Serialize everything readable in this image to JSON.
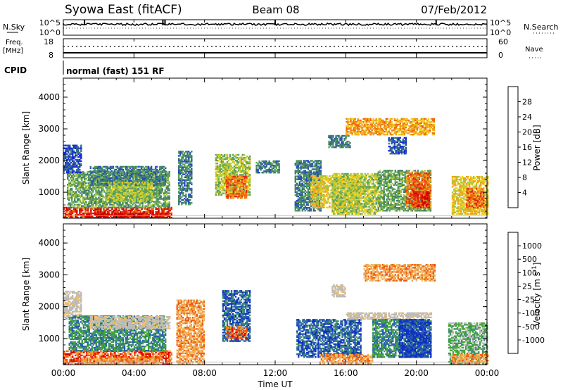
{
  "header": {
    "station": "Syowa East (fitACF)",
    "beam": "Beam 08",
    "date": "07/Feb/2012"
  },
  "top_panels": {
    "nsky_label": "N.Sky",
    "nsky_ticks": [
      "10^5",
      "10^0"
    ],
    "nsearch_label": "N.Search",
    "nsearch_ticks": [
      "10^5",
      "10^0"
    ],
    "freq_label": "Freq.",
    "freq_unit": "[MHz]",
    "freq_ticks": [
      "18",
      "8"
    ],
    "nave_label": "Nave",
    "nave_ticks": [
      "60",
      "0"
    ],
    "cpid_label": "CPID",
    "cpid_text": "normal (fast) 151 RF"
  },
  "chart_data": [
    {
      "type": "heatmap",
      "name": "power",
      "ylabel": "Slant Range [km]",
      "ylim": [
        180,
        4600
      ],
      "yticks": [
        1000,
        2000,
        3000,
        4000
      ],
      "xlim": [
        0,
        24
      ],
      "colorbar_label": "Power [dB]",
      "colorbar_ticks": [
        "4",
        "8",
        "12",
        "16",
        "20",
        "24",
        "28"
      ],
      "colorbar_colors": [
        "#1428e0",
        "#2a4fb8",
        "#3f7f6f",
        "#5aa05a",
        "#a8c640",
        "#f0d020",
        "#f0a020",
        "#f06a10",
        "#e02810",
        "#d00000"
      ],
      "patches": [
        {
          "t0": 0.0,
          "t1": 6.1,
          "r0": 180,
          "r1": 520,
          "level": 8
        },
        {
          "t0": 1.2,
          "t1": 6.0,
          "r0": 180,
          "r1": 360,
          "level": 9
        },
        {
          "t0": 0.2,
          "t1": 6.0,
          "r0": 500,
          "r1": 1650,
          "level": 3
        },
        {
          "t0": 0.0,
          "t1": 1.0,
          "r0": 1600,
          "r1": 2500,
          "level": 1
        },
        {
          "t0": 1.5,
          "t1": 5.8,
          "r0": 1200,
          "r1": 1800,
          "level": 2
        },
        {
          "t0": 2.5,
          "t1": 5.0,
          "r0": 700,
          "r1": 1300,
          "level": 4
        },
        {
          "t0": 6.5,
          "t1": 7.3,
          "r0": 600,
          "r1": 2300,
          "level": 2
        },
        {
          "t0": 8.6,
          "t1": 10.6,
          "r0": 900,
          "r1": 2200,
          "level": 4
        },
        {
          "t0": 9.2,
          "t1": 10.4,
          "r0": 800,
          "r1": 1500,
          "level": 7
        },
        {
          "t0": 10.9,
          "t1": 12.2,
          "r0": 1600,
          "r1": 2000,
          "level": 2
        },
        {
          "t0": 13.1,
          "t1": 14.6,
          "r0": 400,
          "r1": 2000,
          "level": 2
        },
        {
          "t0": 14.0,
          "t1": 16.8,
          "r0": 500,
          "r1": 1500,
          "level": 5
        },
        {
          "t0": 15.2,
          "t1": 17.8,
          "r0": 300,
          "r1": 1600,
          "level": 4
        },
        {
          "t0": 17.8,
          "t1": 20.8,
          "r0": 400,
          "r1": 1700,
          "level": 3
        },
        {
          "t0": 19.4,
          "t1": 20.8,
          "r0": 500,
          "r1": 1600,
          "level": 7
        },
        {
          "t0": 19.8,
          "t1": 20.7,
          "r0": 500,
          "r1": 1000,
          "level": 8
        },
        {
          "t0": 22.0,
          "t1": 24.0,
          "r0": 300,
          "r1": 1500,
          "level": 5
        },
        {
          "t0": 22.8,
          "t1": 23.8,
          "r0": 500,
          "r1": 1100,
          "level": 7
        },
        {
          "t0": 18.4,
          "t1": 19.4,
          "r0": 2200,
          "r1": 2700,
          "level": 1
        },
        {
          "t0": 15.0,
          "t1": 16.2,
          "r0": 2400,
          "r1": 2800,
          "level": 2
        },
        {
          "t0": 16.0,
          "t1": 21.0,
          "r0": 2800,
          "r1": 3300,
          "level": 6
        }
      ]
    },
    {
      "type": "heatmap",
      "name": "velocity",
      "ylabel": "Slant Range [km]",
      "xlabel": "Time UT",
      "ylim": [
        180,
        4600
      ],
      "yticks": [
        1000,
        2000,
        3000,
        4000
      ],
      "xlim": [
        0,
        24
      ],
      "xticks": [
        "00:00",
        "04:00",
        "08:00",
        "12:00",
        "16:00",
        "20:00",
        "00:00"
      ],
      "colorbar_label": "Velocity [m s^-1]",
      "colorbar_ticks": [
        "-1000",
        "-500",
        "-100",
        "-25",
        "25",
        "100",
        "500",
        "1000"
      ],
      "colorbar_colors": [
        "#e00000",
        "#f05a10",
        "#f0a040",
        "#f0c070",
        "#bbbbbb",
        "#bbbbbb",
        "#44aa30",
        "#3f8f6f",
        "#2a5fb0",
        "#1030c0"
      ],
      "patches": [
        {
          "t0": 0.0,
          "t1": 6.1,
          "r0": 180,
          "r1": 600,
          "level": 1
        },
        {
          "t0": 1.0,
          "t1": 5.5,
          "r0": 180,
          "r1": 400,
          "level": 2
        },
        {
          "t0": 0.0,
          "t1": 1.0,
          "r0": 1600,
          "r1": 2500,
          "level": 4
        },
        {
          "t0": 0.3,
          "t1": 5.8,
          "r0": 600,
          "r1": 1700,
          "level": 7
        },
        {
          "t0": 1.5,
          "t1": 6.0,
          "r0": 1300,
          "r1": 1700,
          "level": 4
        },
        {
          "t0": 6.4,
          "t1": 8.0,
          "r0": 200,
          "r1": 2200,
          "level": 2
        },
        {
          "t0": 9.0,
          "t1": 10.6,
          "r0": 900,
          "r1": 2500,
          "level": 8
        },
        {
          "t0": 9.2,
          "t1": 10.4,
          "r0": 1000,
          "r1": 1400,
          "level": 1
        },
        {
          "t0": 13.2,
          "t1": 16.8,
          "r0": 400,
          "r1": 1600,
          "level": 8
        },
        {
          "t0": 14.5,
          "t1": 17.5,
          "r0": 200,
          "r1": 500,
          "level": 2
        },
        {
          "t0": 16.0,
          "t1": 20.8,
          "r0": 1600,
          "r1": 1800,
          "level": 4
        },
        {
          "t0": 17.5,
          "t1": 20.8,
          "r0": 400,
          "r1": 1600,
          "level": 7
        },
        {
          "t0": 19.0,
          "t1": 20.8,
          "r0": 400,
          "r1": 1600,
          "level": 9
        },
        {
          "t0": 21.8,
          "t1": 24.0,
          "r0": 200,
          "r1": 1500,
          "level": 6
        },
        {
          "t0": 22.0,
          "t1": 24.0,
          "r0": 200,
          "r1": 500,
          "level": 2
        },
        {
          "t0": 15.2,
          "t1": 16.0,
          "r0": 2300,
          "r1": 2700,
          "level": 4
        },
        {
          "t0": 17.0,
          "t1": 21.0,
          "r0": 2800,
          "r1": 3300,
          "level": 2
        }
      ]
    }
  ],
  "seed": 7
}
